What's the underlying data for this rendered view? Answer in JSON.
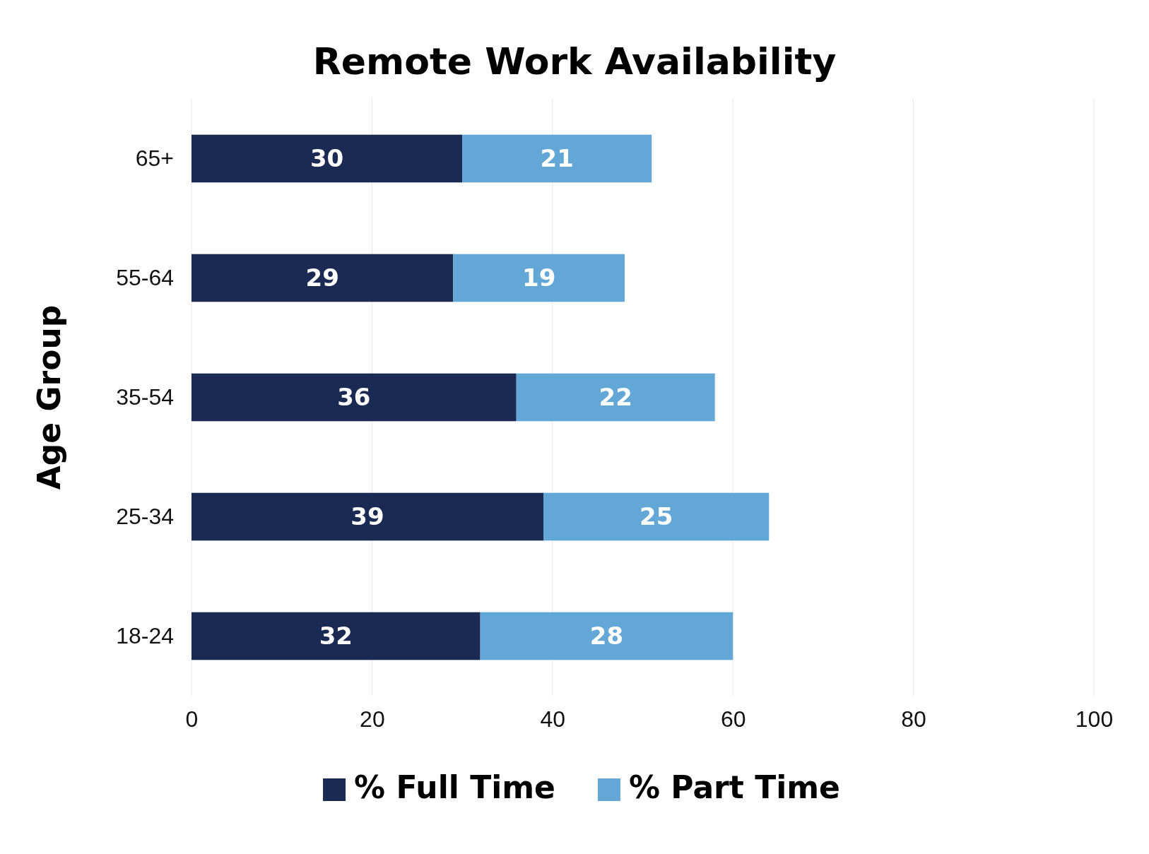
{
  "chart_data": {
    "type": "bar",
    "title": "Remote Work Availability",
    "ylabel": "Age Group",
    "orientation": "horizontal",
    "stacked": true,
    "categories": [
      "65+",
      "55-64",
      "35-54",
      "25-34",
      "18-24"
    ],
    "series": [
      {
        "name": "% Full Time",
        "color": "#1b2a52",
        "values": [
          30,
          29,
          36,
          39,
          32
        ]
      },
      {
        "name": "% Part Time",
        "color": "#62a7d6",
        "values": [
          21,
          19,
          22,
          25,
          28
        ]
      }
    ],
    "xlim": [
      0,
      100
    ],
    "xticks": [
      0,
      20,
      40,
      60,
      80,
      100
    ],
    "grid": "x",
    "legend": "bottom",
    "data_labels": true
  }
}
